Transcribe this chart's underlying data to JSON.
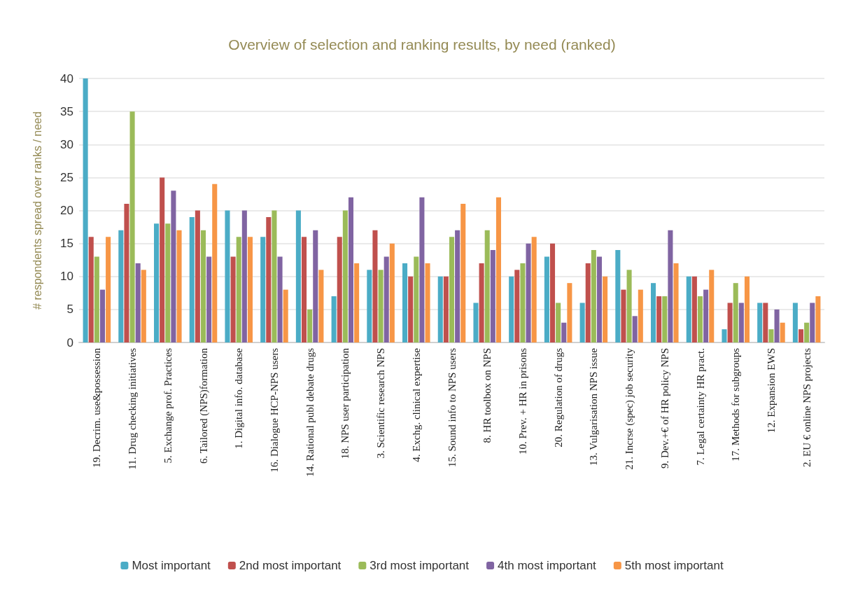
{
  "chart_data": {
    "type": "bar",
    "title": "Overview of selection and ranking results, by need (ranked)",
    "ylabel": "# respondents spread over ranks / need",
    "categories": [
      "19. Decrim. use&possession",
      "11. Drug checking initiatives",
      "5. Exchange prof. Practices",
      "6. Tailored (NPS)formation",
      "1. Digital info. database",
      "16. Dialogue HCP-NPS users",
      "14. Rational publ debate drugs",
      "18. NPS user participation",
      "3. Scientific research NPS",
      "4. Exchg. clinical expertise",
      "15. Sound info to NPS users",
      "8. HR toolbox on NPS",
      "10. Prev. + HR in prisons",
      "20. Regulation of drugs",
      "13. Vulgarisation NPS issue",
      "21. Incrse (spec) job security",
      "9. Dev.+€ of HR policy NPS",
      "7. Legal certainty HR pract.",
      "17. Methods for subgroups",
      "12. Expansion EWS",
      "2. EU € online NPS projects"
    ],
    "series": [
      {
        "name": "Most important",
        "color": "#4bacc6",
        "values": [
          40,
          17,
          18,
          19,
          20,
          16,
          20,
          7,
          11,
          12,
          10,
          6,
          10,
          13,
          6,
          14,
          9,
          10,
          2,
          6,
          6
        ]
      },
      {
        "name": "2nd most important",
        "color": "#c0504d",
        "values": [
          16,
          21,
          25,
          20,
          13,
          19,
          16,
          16,
          17,
          10,
          10,
          12,
          11,
          15,
          12,
          8,
          7,
          10,
          6,
          6,
          2
        ]
      },
      {
        "name": "3rd most important",
        "color": "#9bbb59",
        "values": [
          13,
          35,
          18,
          17,
          16,
          20,
          5,
          20,
          11,
          13,
          16,
          17,
          12,
          6,
          14,
          11,
          7,
          7,
          9,
          2,
          3
        ]
      },
      {
        "name": "4th most important",
        "color": "#8064a2",
        "values": [
          8,
          12,
          23,
          13,
          20,
          13,
          17,
          22,
          13,
          22,
          17,
          14,
          15,
          3,
          13,
          4,
          17,
          8,
          6,
          5,
          6
        ]
      },
      {
        "name": "5th most important",
        "color": "#f79646",
        "values": [
          16,
          11,
          17,
          24,
          16,
          8,
          11,
          12,
          15,
          12,
          21,
          22,
          16,
          9,
          10,
          8,
          12,
          11,
          10,
          3,
          7
        ]
      }
    ],
    "ylim": [
      0,
      40
    ],
    "yticks": [
      0,
      5,
      10,
      15,
      20,
      25,
      30,
      35,
      40
    ],
    "grid": "y",
    "legend": "bottom"
  }
}
